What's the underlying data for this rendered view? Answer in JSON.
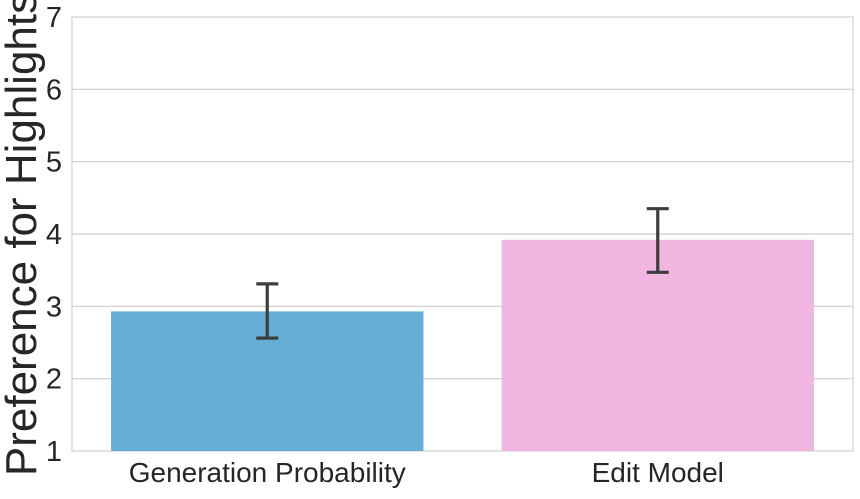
{
  "chart_data": {
    "type": "bar",
    "title": "",
    "xlabel": "",
    "ylabel": "Preference for Highlights",
    "ylim": [
      1,
      7
    ],
    "yticks": [
      1,
      2,
      3,
      4,
      5,
      6,
      7
    ],
    "categories": [
      "Generation Probability",
      "Edit Model"
    ],
    "values": [
      2.93,
      3.92
    ],
    "error_bars": [
      {
        "low": 2.56,
        "high": 3.31
      },
      {
        "low": 3.47,
        "high": 4.35
      }
    ],
    "colors": [
      "#67AED6",
      "#F1B6DF"
    ],
    "grid": true,
    "grid_axis": "y",
    "legend": "none"
  }
}
